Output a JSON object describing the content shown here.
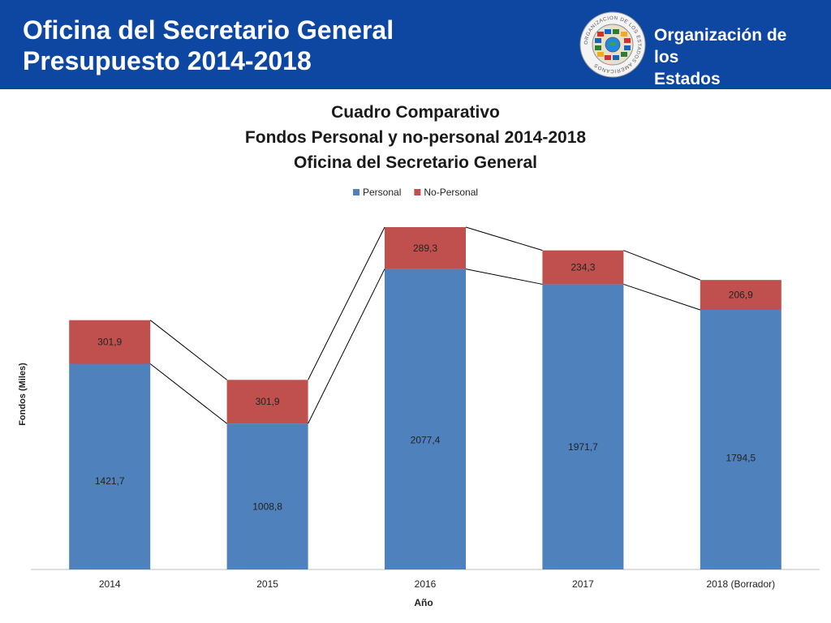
{
  "header": {
    "title_line1": "Oficina del Secretario General",
    "title_line2": "Presupuesto 2014-2018",
    "org_line1": "Organización de los",
    "org_line2": "Estados Americanos",
    "seal_text": "ORGANIZACION DE LOS ESTADOS AMERICANOS",
    "bg_color": "#0d47a1"
  },
  "chart_data": {
    "type": "bar",
    "stacked": true,
    "title_lines": [
      "Cuadro Comparativo",
      "Fondos Personal y no-personal 2014-2018",
      "Oficina del Secretario General"
    ],
    "categories": [
      "2014",
      "2015",
      "2016",
      "2017",
      "2018 (Borrador)"
    ],
    "series": [
      {
        "name": "Personal",
        "color": "#4f81bd",
        "values": [
          1421.7,
          1008.8,
          2077.4,
          1971.7,
          1794.5
        ],
        "labels": [
          "1421,7",
          "1008,8",
          "2077,4",
          "1971,7",
          "1794,5"
        ]
      },
      {
        "name": "No-Personal",
        "color": "#c0504d",
        "values": [
          301.9,
          301.9,
          289.3,
          234.3,
          206.9
        ],
        "labels": [
          "301,9",
          "301,9",
          "289,3",
          "234,3",
          "206,9"
        ]
      }
    ],
    "xlabel": "Año",
    "ylabel": "Fondos (Miles)",
    "ylim": [
      0,
      2366.7
    ],
    "legend": "top-center",
    "grid": false,
    "series_lines": true
  }
}
